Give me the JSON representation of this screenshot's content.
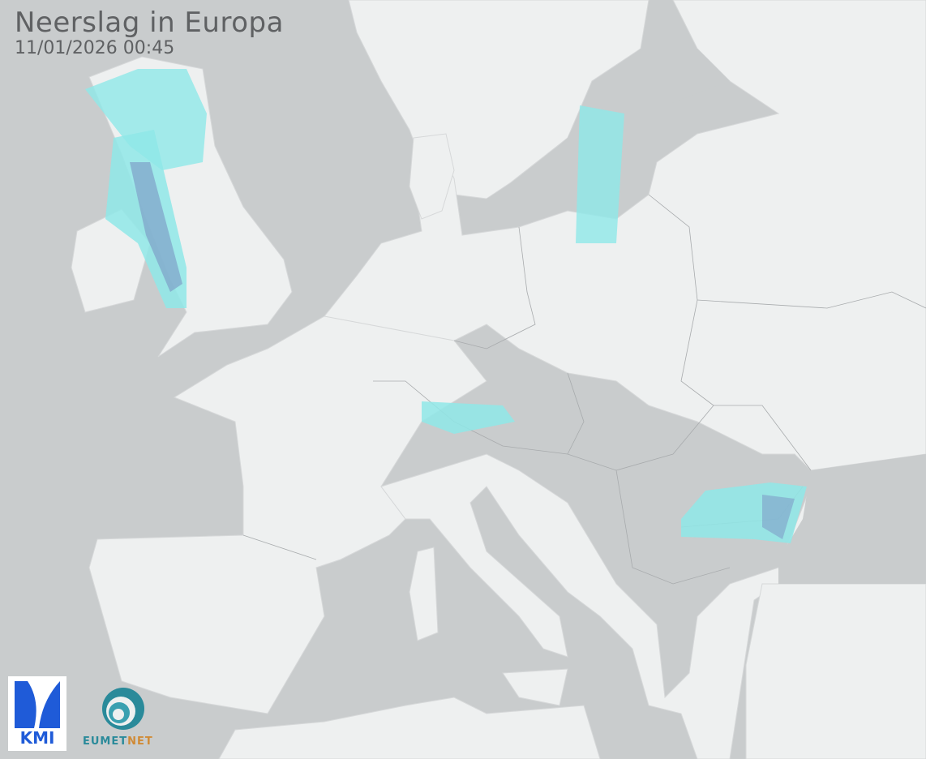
{
  "header": {
    "title": "Neerslag in Europa",
    "timestamp": "11/01/2026 00:45"
  },
  "logos": {
    "kmi": {
      "text": "KMI",
      "color": "#1f5bd8"
    },
    "eumetnet": {
      "text_a": "EUMET",
      "text_b": "NET",
      "color_a": "#2a8a9a",
      "color_b": "#d08a35"
    }
  },
  "colors": {
    "sea": "#c9cccd",
    "land": "#eef0f0",
    "border": "#a8abad",
    "precip_light": "#8fe8e8",
    "precip_heavy": "#7f9fc8"
  }
}
